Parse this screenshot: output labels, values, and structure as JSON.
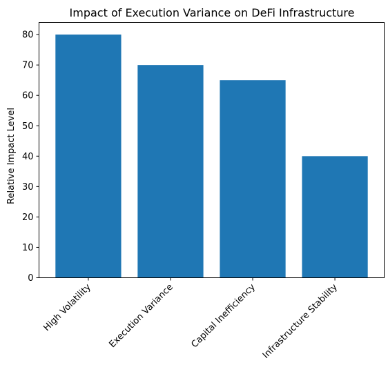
{
  "chart_data": {
    "type": "bar",
    "title": "Impact of Execution Variance on DeFi Infrastructure",
    "xlabel": "",
    "ylabel": "Relative Impact Level",
    "categories": [
      "High Volatility",
      "Execution Variance",
      "Capital Inefficiency",
      "Infrastructure Stability"
    ],
    "values": [
      80,
      70,
      65,
      40
    ],
    "ylim": [
      0,
      84
    ],
    "yticks": [
      0,
      10,
      20,
      30,
      40,
      50,
      60,
      70,
      80
    ],
    "bar_color": "#1f77b4",
    "grid": false,
    "legend": "none"
  }
}
